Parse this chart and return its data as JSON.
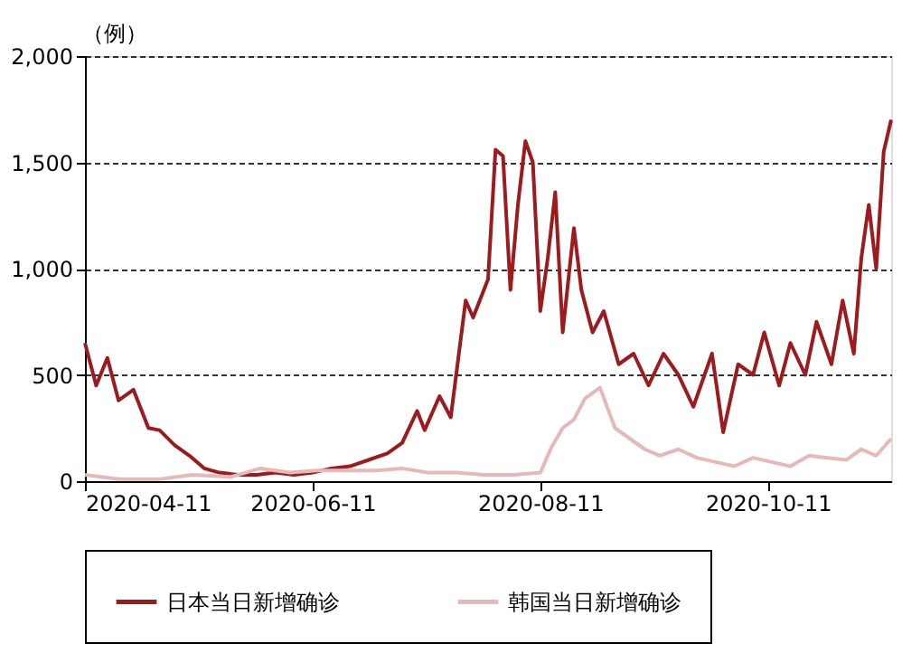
{
  "chart_data": {
    "type": "line",
    "ylabel": "（例）",
    "xlim": [
      "2020-04-11",
      "2020-11-13"
    ],
    "xticks": [
      "2020-04-11",
      "2020-06-11",
      "2020-08-11",
      "2020-10-11"
    ],
    "ylim": [
      0,
      2000
    ],
    "yticks": [
      0,
      {
        "value": 500,
        "label": "500"
      },
      {
        "value": 1000,
        "label": "1,000"
      },
      {
        "value": 1500,
        "label": "1,500"
      },
      {
        "value": 2000,
        "label": "2,000"
      }
    ],
    "grid": "y",
    "legend": "bottom",
    "line_style": "solid",
    "marker": "none",
    "series": [
      {
        "name": "日本当日新增确诊",
        "color": "#9b1b1f",
        "x": [
          "2020-04-11",
          "2020-04-14",
          "2020-04-17",
          "2020-04-20",
          "2020-04-24",
          "2020-04-28",
          "2020-05-01",
          "2020-05-05",
          "2020-05-09",
          "2020-05-13",
          "2020-05-17",
          "2020-05-22",
          "2020-05-27",
          "2020-06-01",
          "2020-06-06",
          "2020-06-11",
          "2020-06-16",
          "2020-06-21",
          "2020-06-26",
          "2020-07-01",
          "2020-07-05",
          "2020-07-09",
          "2020-07-11",
          "2020-07-15",
          "2020-07-18",
          "2020-07-22",
          "2020-07-24",
          "2020-07-28",
          "2020-07-30",
          "2020-08-01",
          "2020-08-03",
          "2020-08-05",
          "2020-08-07",
          "2020-08-09",
          "2020-08-11",
          "2020-08-13",
          "2020-08-15",
          "2020-08-17",
          "2020-08-20",
          "2020-08-22",
          "2020-08-25",
          "2020-08-28",
          "2020-09-01",
          "2020-09-05",
          "2020-09-09",
          "2020-09-13",
          "2020-09-17",
          "2020-09-21",
          "2020-09-26",
          "2020-09-29",
          "2020-10-03",
          "2020-10-07",
          "2020-10-10",
          "2020-10-14",
          "2020-10-17",
          "2020-10-21",
          "2020-10-24",
          "2020-10-28",
          "2020-10-31",
          "2020-11-03",
          "2020-11-05",
          "2020-11-07",
          "2020-11-09",
          "2020-11-11",
          "2020-11-13"
        ],
        "values": [
          650,
          450,
          580,
          380,
          430,
          250,
          240,
          170,
          120,
          60,
          40,
          30,
          30,
          40,
          30,
          40,
          60,
          70,
          100,
          130,
          180,
          330,
          240,
          400,
          300,
          850,
          770,
          950,
          1560,
          1530,
          900,
          1300,
          1600,
          1500,
          800,
          1050,
          1360,
          700,
          1190,
          900,
          700,
          800,
          550,
          600,
          450,
          600,
          500,
          350,
          600,
          230,
          550,
          500,
          700,
          450,
          650,
          500,
          750,
          550,
          850,
          600,
          1050,
          1300,
          1000,
          1550,
          1700
        ]
      },
      {
        "name": "韩国当日新增确诊",
        "color": "#e6b8b8",
        "x": [
          "2020-04-11",
          "2020-04-20",
          "2020-05-01",
          "2020-05-10",
          "2020-05-20",
          "2020-05-28",
          "2020-06-05",
          "2020-06-12",
          "2020-06-20",
          "2020-06-28",
          "2020-07-05",
          "2020-07-12",
          "2020-07-20",
          "2020-07-27",
          "2020-08-04",
          "2020-08-11",
          "2020-08-14",
          "2020-08-17",
          "2020-08-20",
          "2020-08-23",
          "2020-08-27",
          "2020-08-31",
          "2020-09-04",
          "2020-09-08",
          "2020-09-12",
          "2020-09-17",
          "2020-09-22",
          "2020-09-27",
          "2020-10-02",
          "2020-10-07",
          "2020-10-12",
          "2020-10-17",
          "2020-10-22",
          "2020-10-27",
          "2020-11-01",
          "2020-11-05",
          "2020-11-09",
          "2020-11-13"
        ],
        "values": [
          30,
          10,
          10,
          30,
          20,
          60,
          40,
          50,
          50,
          50,
          60,
          40,
          40,
          30,
          30,
          40,
          160,
          250,
          290,
          390,
          440,
          250,
          200,
          150,
          120,
          150,
          110,
          90,
          70,
          110,
          90,
          70,
          120,
          110,
          100,
          150,
          120,
          200
        ]
      }
    ]
  }
}
